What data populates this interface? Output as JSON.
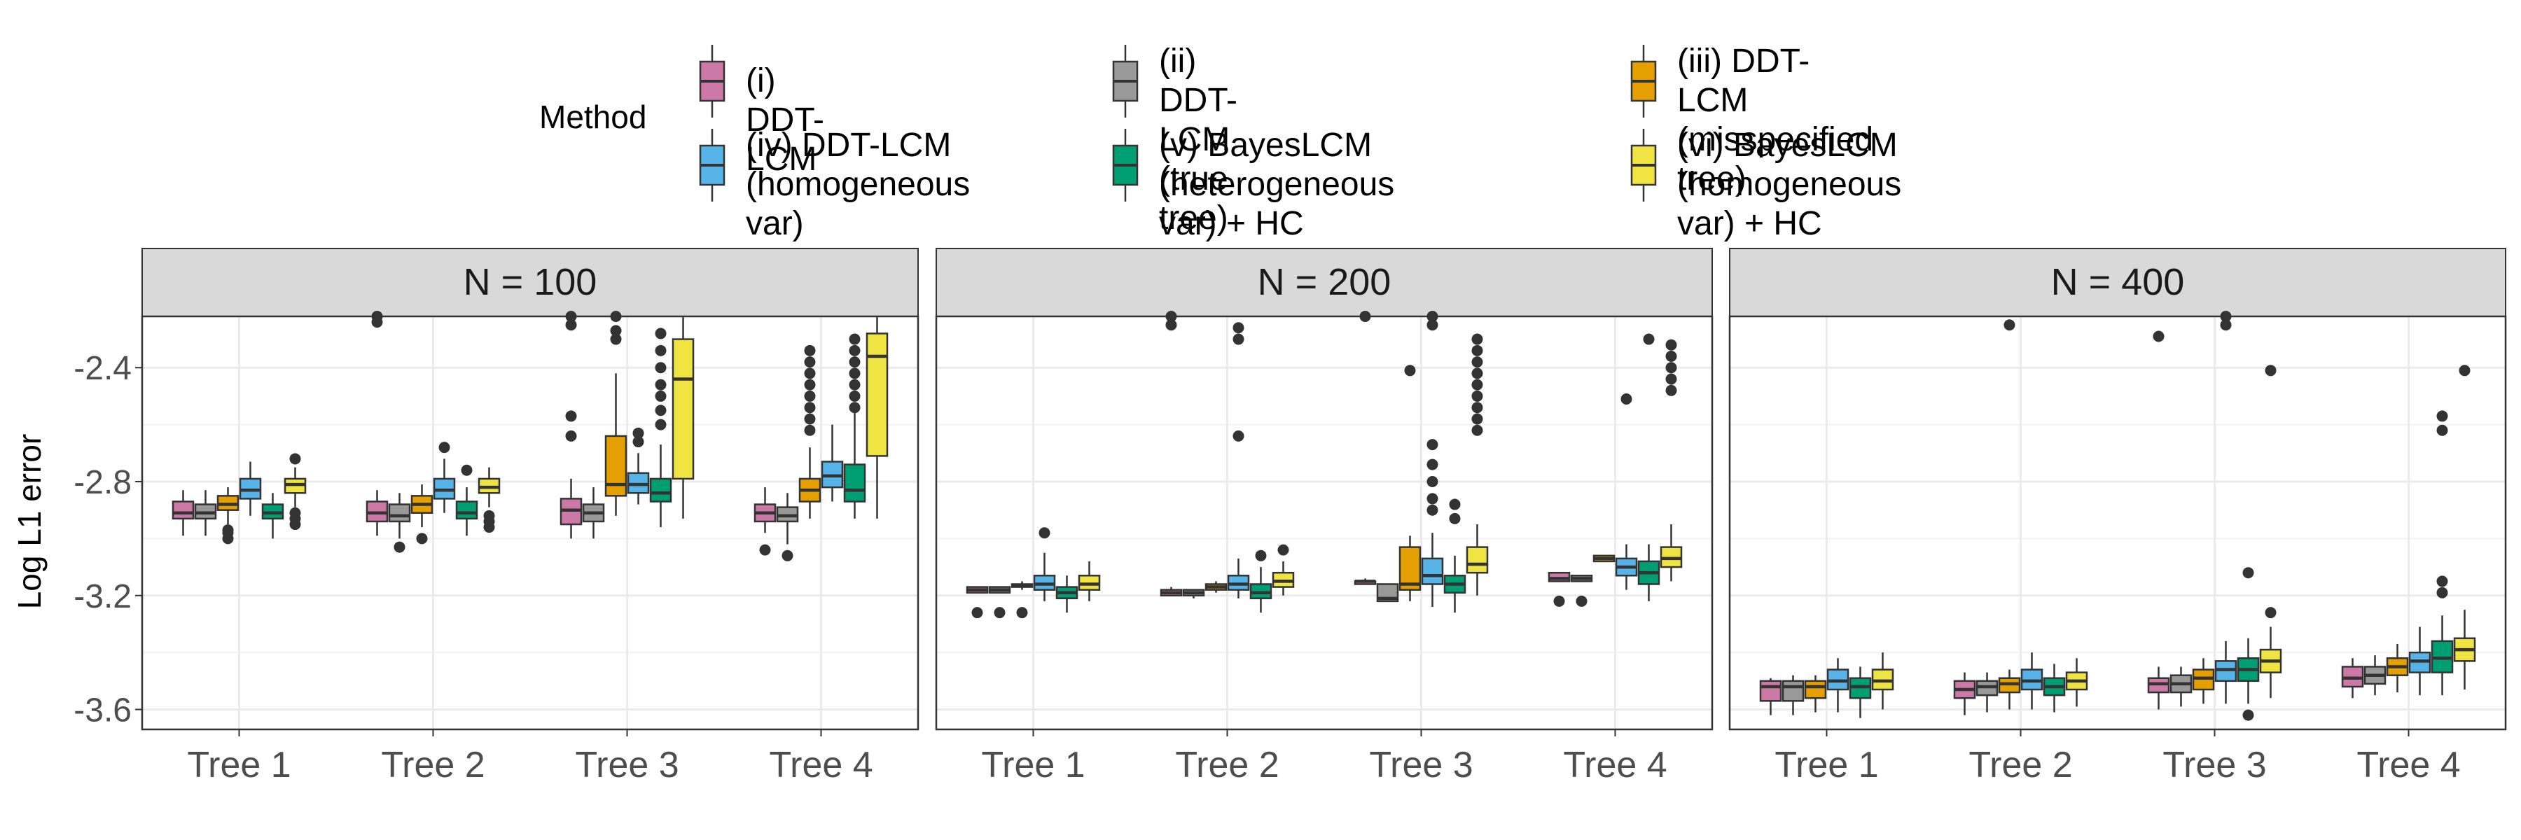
{
  "chart_data": {
    "type": "boxplot",
    "ylabel": "Log L1 error",
    "xlabel": "",
    "ylim": [
      -3.67,
      -2.22
    ],
    "yticks": [
      -3.6,
      -3.2,
      -2.8,
      -2.4
    ],
    "ytick_labels": [
      "-3.6",
      "-3.2",
      "-2.8",
      "-2.4"
    ],
    "categories": [
      "Tree 1",
      "Tree 2",
      "Tree 3",
      "Tree 4"
    ],
    "legend": {
      "title": "Method",
      "position": "top"
    },
    "series": [
      {
        "id": "i",
        "name": "(i) DDT-LCM",
        "name_lines": [
          "(i) DDT-LCM"
        ],
        "color": "#CC79A7"
      },
      {
        "id": "ii",
        "name": "(ii) DDT-LCM (true tree)",
        "name_lines": [
          "(ii) DDT-LCM",
          "(true tree)"
        ],
        "color": "#999999"
      },
      {
        "id": "iii",
        "name": "(iii) DDT-LCM (misspecified tree)",
        "name_lines": [
          "(iii) DDT-LCM",
          "(misspecified tree)"
        ],
        "color": "#E69F00"
      },
      {
        "id": "iv",
        "name": "(iv) DDT-LCM (homogeneous var)",
        "name_lines": [
          "(iv) DDT-LCM",
          "(homogeneous var)"
        ],
        "color": "#56B4E9"
      },
      {
        "id": "v",
        "name": "(v) BayesLCM (heterogeneous var) + HC",
        "name_lines": [
          "(v) BayesLCM",
          "(heterogeneous var) + HC"
        ],
        "color": "#009E73"
      },
      {
        "id": "vi",
        "name": "(vi) BayesLCM (homogeneous var) + HC",
        "name_lines": [
          "(vi) BayesLCM",
          "(homogeneous var) + HC"
        ],
        "color": "#F0E442"
      }
    ],
    "panels": [
      {
        "title": "N = 100",
        "boxes": [
          [
            {
              "lo": -2.99,
              "q1": -2.93,
              "med": -2.91,
              "q3": -2.87,
              "hi": -2.83,
              "out": []
            },
            {
              "lo": -2.99,
              "q1": -2.93,
              "med": -2.91,
              "q3": -2.88,
              "hi": -2.83,
              "out": []
            },
            {
              "lo": -2.95,
              "q1": -2.9,
              "med": -2.88,
              "q3": -2.85,
              "hi": -2.82,
              "out": [
                -2.97,
                -2.98,
                -3.0
              ]
            },
            {
              "lo": -2.92,
              "q1": -2.86,
              "med": -2.83,
              "q3": -2.79,
              "hi": -2.73,
              "out": []
            },
            {
              "lo": -3.0,
              "q1": -2.93,
              "med": -2.91,
              "q3": -2.88,
              "hi": -2.84,
              "out": []
            },
            {
              "lo": -2.89,
              "q1": -2.84,
              "med": -2.81,
              "q3": -2.79,
              "hi": -2.75,
              "out": [
                -2.72,
                -2.91,
                -2.93,
                -2.95
              ]
            }
          ],
          [
            {
              "lo": -2.99,
              "q1": -2.94,
              "med": -2.91,
              "q3": -2.87,
              "hi": -2.83,
              "out": [
                -2.22,
                -2.24
              ]
            },
            {
              "lo": -3.0,
              "q1": -2.94,
              "med": -2.92,
              "q3": -2.88,
              "hi": -2.84,
              "out": [
                -3.03
              ]
            },
            {
              "lo": -2.96,
              "q1": -2.91,
              "med": -2.88,
              "q3": -2.85,
              "hi": -2.81,
              "out": [
                -3.0
              ]
            },
            {
              "lo": -2.91,
              "q1": -2.86,
              "med": -2.83,
              "q3": -2.79,
              "hi": -2.72,
              "out": [
                -2.68
              ]
            },
            {
              "lo": -2.99,
              "q1": -2.93,
              "med": -2.91,
              "q3": -2.87,
              "hi": -2.82,
              "out": [
                -2.76
              ]
            },
            {
              "lo": -2.89,
              "q1": -2.84,
              "med": -2.82,
              "q3": -2.79,
              "hi": -2.75,
              "out": [
                -2.92,
                -2.94,
                -2.96
              ]
            }
          ],
          [
            {
              "lo": -3.0,
              "q1": -2.95,
              "med": -2.9,
              "q3": -2.86,
              "hi": -2.79,
              "out": [
                -2.22,
                -2.25,
                -2.57,
                -2.64
              ]
            },
            {
              "lo": -3.0,
              "q1": -2.94,
              "med": -2.91,
              "q3": -2.88,
              "hi": -2.82,
              "out": []
            },
            {
              "lo": -2.92,
              "q1": -2.85,
              "med": -2.81,
              "q3": -2.64,
              "hi": -2.42,
              "out": [
                -2.22,
                -2.27,
                -2.3
              ]
            },
            {
              "lo": -2.88,
              "q1": -2.84,
              "med": -2.81,
              "q3": -2.77,
              "hi": -2.7,
              "out": [
                -2.63,
                -2.66
              ]
            },
            {
              "lo": -2.96,
              "q1": -2.87,
              "med": -2.84,
              "q3": -2.79,
              "hi": -2.67,
              "out": [
                -2.28,
                -2.34,
                -2.4,
                -2.46,
                -2.5,
                -2.55,
                -2.6
              ]
            },
            {
              "lo": -2.93,
              "q1": -2.79,
              "med": -2.44,
              "q3": -2.3,
              "hi": -2.22,
              "out": []
            }
          ],
          [
            {
              "lo": -2.98,
              "q1": -2.94,
              "med": -2.91,
              "q3": -2.88,
              "hi": -2.82,
              "out": [
                -3.04
              ]
            },
            {
              "lo": -3.02,
              "q1": -2.94,
              "med": -2.92,
              "q3": -2.89,
              "hi": -2.84,
              "out": [
                -3.06
              ]
            },
            {
              "lo": -2.93,
              "q1": -2.87,
              "med": -2.83,
              "q3": -2.79,
              "hi": -2.68,
              "out": [
                -2.34,
                -2.38,
                -2.42,
                -2.46,
                -2.5,
                -2.54,
                -2.58,
                -2.62
              ]
            },
            {
              "lo": -2.87,
              "q1": -2.82,
              "med": -2.78,
              "q3": -2.73,
              "hi": -2.6,
              "out": []
            },
            {
              "lo": -2.93,
              "q1": -2.87,
              "med": -2.83,
              "q3": -2.74,
              "hi": -2.55,
              "out": [
                -2.3,
                -2.34,
                -2.38,
                -2.42,
                -2.46,
                -2.5,
                -2.54
              ]
            },
            {
              "lo": -2.93,
              "q1": -2.71,
              "med": -2.36,
              "q3": -2.28,
              "hi": -2.22,
              "out": []
            }
          ]
        ]
      },
      {
        "title": "N = 200",
        "boxes": [
          [
            {
              "lo": -3.19,
              "q1": -3.19,
              "med": -3.18,
              "q3": -3.17,
              "hi": -3.17,
              "out": [
                -3.26
              ]
            },
            {
              "lo": -3.19,
              "q1": -3.19,
              "med": -3.18,
              "q3": -3.17,
              "hi": -3.17,
              "out": [
                -3.26
              ]
            },
            {
              "lo": -3.18,
              "q1": -3.17,
              "med": -3.165,
              "q3": -3.16,
              "hi": -3.15,
              "out": [
                -3.26
              ]
            },
            {
              "lo": -3.22,
              "q1": -3.18,
              "med": -3.16,
              "q3": -3.13,
              "hi": -3.05,
              "out": [
                -2.98
              ]
            },
            {
              "lo": -3.26,
              "q1": -3.21,
              "med": -3.19,
              "q3": -3.17,
              "hi": -3.13,
              "out": []
            },
            {
              "lo": -3.22,
              "q1": -3.18,
              "med": -3.16,
              "q3": -3.13,
              "hi": -3.08,
              "out": []
            }
          ],
          [
            {
              "lo": -3.2,
              "q1": -3.2,
              "med": -3.19,
              "q3": -3.18,
              "hi": -3.17,
              "out": [
                -2.22,
                -2.25
              ]
            },
            {
              "lo": -3.21,
              "q1": -3.2,
              "med": -3.19,
              "q3": -3.18,
              "hi": -3.18,
              "out": []
            },
            {
              "lo": -3.19,
              "q1": -3.18,
              "med": -3.17,
              "q3": -3.16,
              "hi": -3.15,
              "out": []
            },
            {
              "lo": -3.21,
              "q1": -3.18,
              "med": -3.16,
              "q3": -3.13,
              "hi": -3.07,
              "out": [
                -2.26,
                -2.3,
                -2.64
              ]
            },
            {
              "lo": -3.26,
              "q1": -3.21,
              "med": -3.19,
              "q3": -3.16,
              "hi": -3.1,
              "out": [
                -3.06
              ]
            },
            {
              "lo": -3.2,
              "q1": -3.17,
              "med": -3.15,
              "q3": -3.12,
              "hi": -3.08,
              "out": [
                -3.04
              ]
            }
          ],
          [
            {
              "lo": -3.16,
              "q1": -3.16,
              "med": -3.15,
              "q3": -3.15,
              "hi": -3.14,
              "out": [
                -2.22
              ]
            },
            {
              "lo": -3.22,
              "q1": -3.22,
              "med": -3.21,
              "q3": -3.16,
              "hi": -3.16,
              "out": []
            },
            {
              "lo": -3.22,
              "q1": -3.18,
              "med": -3.16,
              "q3": -3.03,
              "hi": -2.99,
              "out": [
                -2.41
              ]
            },
            {
              "lo": -3.24,
              "q1": -3.16,
              "med": -3.13,
              "q3": -3.07,
              "hi": -2.98,
              "out": [
                -2.22,
                -2.25,
                -2.67,
                -2.74,
                -2.8,
                -2.86,
                -2.9
              ]
            },
            {
              "lo": -3.26,
              "q1": -3.19,
              "med": -3.16,
              "q3": -3.13,
              "hi": -3.06,
              "out": [
                -2.88,
                -2.93
              ]
            },
            {
              "lo": -3.2,
              "q1": -3.12,
              "med": -3.09,
              "q3": -3.03,
              "hi": -2.95,
              "out": [
                -2.3,
                -2.34,
                -2.38,
                -2.42,
                -2.46,
                -2.5,
                -2.54,
                -2.58,
                -2.62
              ]
            }
          ],
          [
            {
              "lo": -3.15,
              "q1": -3.15,
              "med": -3.14,
              "q3": -3.12,
              "hi": -3.12,
              "out": [
                -3.22
              ]
            },
            {
              "lo": -3.15,
              "q1": -3.15,
              "med": -3.14,
              "q3": -3.13,
              "hi": -3.13,
              "out": [
                -3.22
              ]
            },
            {
              "lo": -3.08,
              "q1": -3.08,
              "med": -3.07,
              "q3": -3.06,
              "hi": -3.06,
              "out": []
            },
            {
              "lo": -3.18,
              "q1": -3.13,
              "med": -3.1,
              "q3": -3.07,
              "hi": -3.02,
              "out": [
                -2.51
              ]
            },
            {
              "lo": -3.22,
              "q1": -3.16,
              "med": -3.12,
              "q3": -3.08,
              "hi": -3.02,
              "out": [
                -2.3
              ]
            },
            {
              "lo": -3.15,
              "q1": -3.1,
              "med": -3.07,
              "q3": -3.03,
              "hi": -2.95,
              "out": [
                -2.32,
                -2.36,
                -2.4,
                -2.44,
                -2.48
              ]
            }
          ]
        ]
      },
      {
        "title": "N = 400",
        "boxes": [
          [
            {
              "lo": -3.62,
              "q1": -3.57,
              "med": -3.52,
              "q3": -3.5,
              "hi": -3.49,
              "out": []
            },
            {
              "lo": -3.62,
              "q1": -3.57,
              "med": -3.52,
              "q3": -3.5,
              "hi": -3.48,
              "out": []
            },
            {
              "lo": -3.61,
              "q1": -3.56,
              "med": -3.52,
              "q3": -3.5,
              "hi": -3.48,
              "out": []
            },
            {
              "lo": -3.61,
              "q1": -3.53,
              "med": -3.5,
              "q3": -3.46,
              "hi": -3.42,
              "out": []
            },
            {
              "lo": -3.63,
              "q1": -3.56,
              "med": -3.52,
              "q3": -3.49,
              "hi": -3.45,
              "out": []
            },
            {
              "lo": -3.6,
              "q1": -3.53,
              "med": -3.5,
              "q3": -3.46,
              "hi": -3.4,
              "out": []
            }
          ],
          [
            {
              "lo": -3.62,
              "q1": -3.56,
              "med": -3.53,
              "q3": -3.5,
              "hi": -3.47,
              "out": []
            },
            {
              "lo": -3.61,
              "q1": -3.55,
              "med": -3.52,
              "q3": -3.5,
              "hi": -3.47,
              "out": []
            },
            {
              "lo": -3.6,
              "q1": -3.54,
              "med": -3.51,
              "q3": -3.49,
              "hi": -3.46,
              "out": [
                -2.25
              ]
            },
            {
              "lo": -3.6,
              "q1": -3.53,
              "med": -3.5,
              "q3": -3.46,
              "hi": -3.4,
              "out": []
            },
            {
              "lo": -3.61,
              "q1": -3.55,
              "med": -3.52,
              "q3": -3.49,
              "hi": -3.44,
              "out": []
            },
            {
              "lo": -3.59,
              "q1": -3.53,
              "med": -3.5,
              "q3": -3.47,
              "hi": -3.42,
              "out": []
            }
          ],
          [
            {
              "lo": -3.6,
              "q1": -3.54,
              "med": -3.51,
              "q3": -3.49,
              "hi": -3.45,
              "out": [
                -2.29
              ]
            },
            {
              "lo": -3.59,
              "q1": -3.54,
              "med": -3.51,
              "q3": -3.48,
              "hi": -3.45,
              "out": []
            },
            {
              "lo": -3.58,
              "q1": -3.53,
              "med": -3.49,
              "q3": -3.46,
              "hi": -3.42,
              "out": []
            },
            {
              "lo": -3.58,
              "q1": -3.5,
              "med": -3.46,
              "q3": -3.43,
              "hi": -3.36,
              "out": [
                -2.22,
                -2.25
              ]
            },
            {
              "lo": -3.58,
              "q1": -3.5,
              "med": -3.46,
              "q3": -3.42,
              "hi": -3.35,
              "out": [
                -3.62,
                -3.12
              ]
            },
            {
              "lo": -3.56,
              "q1": -3.47,
              "med": -3.43,
              "q3": -3.39,
              "hi": -3.31,
              "out": [
                -3.26,
                -2.41
              ]
            }
          ],
          [
            {
              "lo": -3.56,
              "q1": -3.52,
              "med": -3.49,
              "q3": -3.45,
              "hi": -3.42,
              "out": []
            },
            {
              "lo": -3.55,
              "q1": -3.51,
              "med": -3.48,
              "q3": -3.45,
              "hi": -3.41,
              "out": []
            },
            {
              "lo": -3.54,
              "q1": -3.48,
              "med": -3.45,
              "q3": -3.42,
              "hi": -3.37,
              "out": []
            },
            {
              "lo": -3.55,
              "q1": -3.47,
              "med": -3.43,
              "q3": -3.4,
              "hi": -3.31,
              "out": []
            },
            {
              "lo": -3.55,
              "q1": -3.47,
              "med": -3.42,
              "q3": -3.36,
              "hi": -3.27,
              "out": [
                -3.15,
                -3.19,
                -2.57,
                -2.62
              ]
            },
            {
              "lo": -3.53,
              "q1": -3.43,
              "med": -3.39,
              "q3": -3.35,
              "hi": -3.25,
              "out": [
                -2.41
              ]
            }
          ]
        ]
      }
    ]
  }
}
